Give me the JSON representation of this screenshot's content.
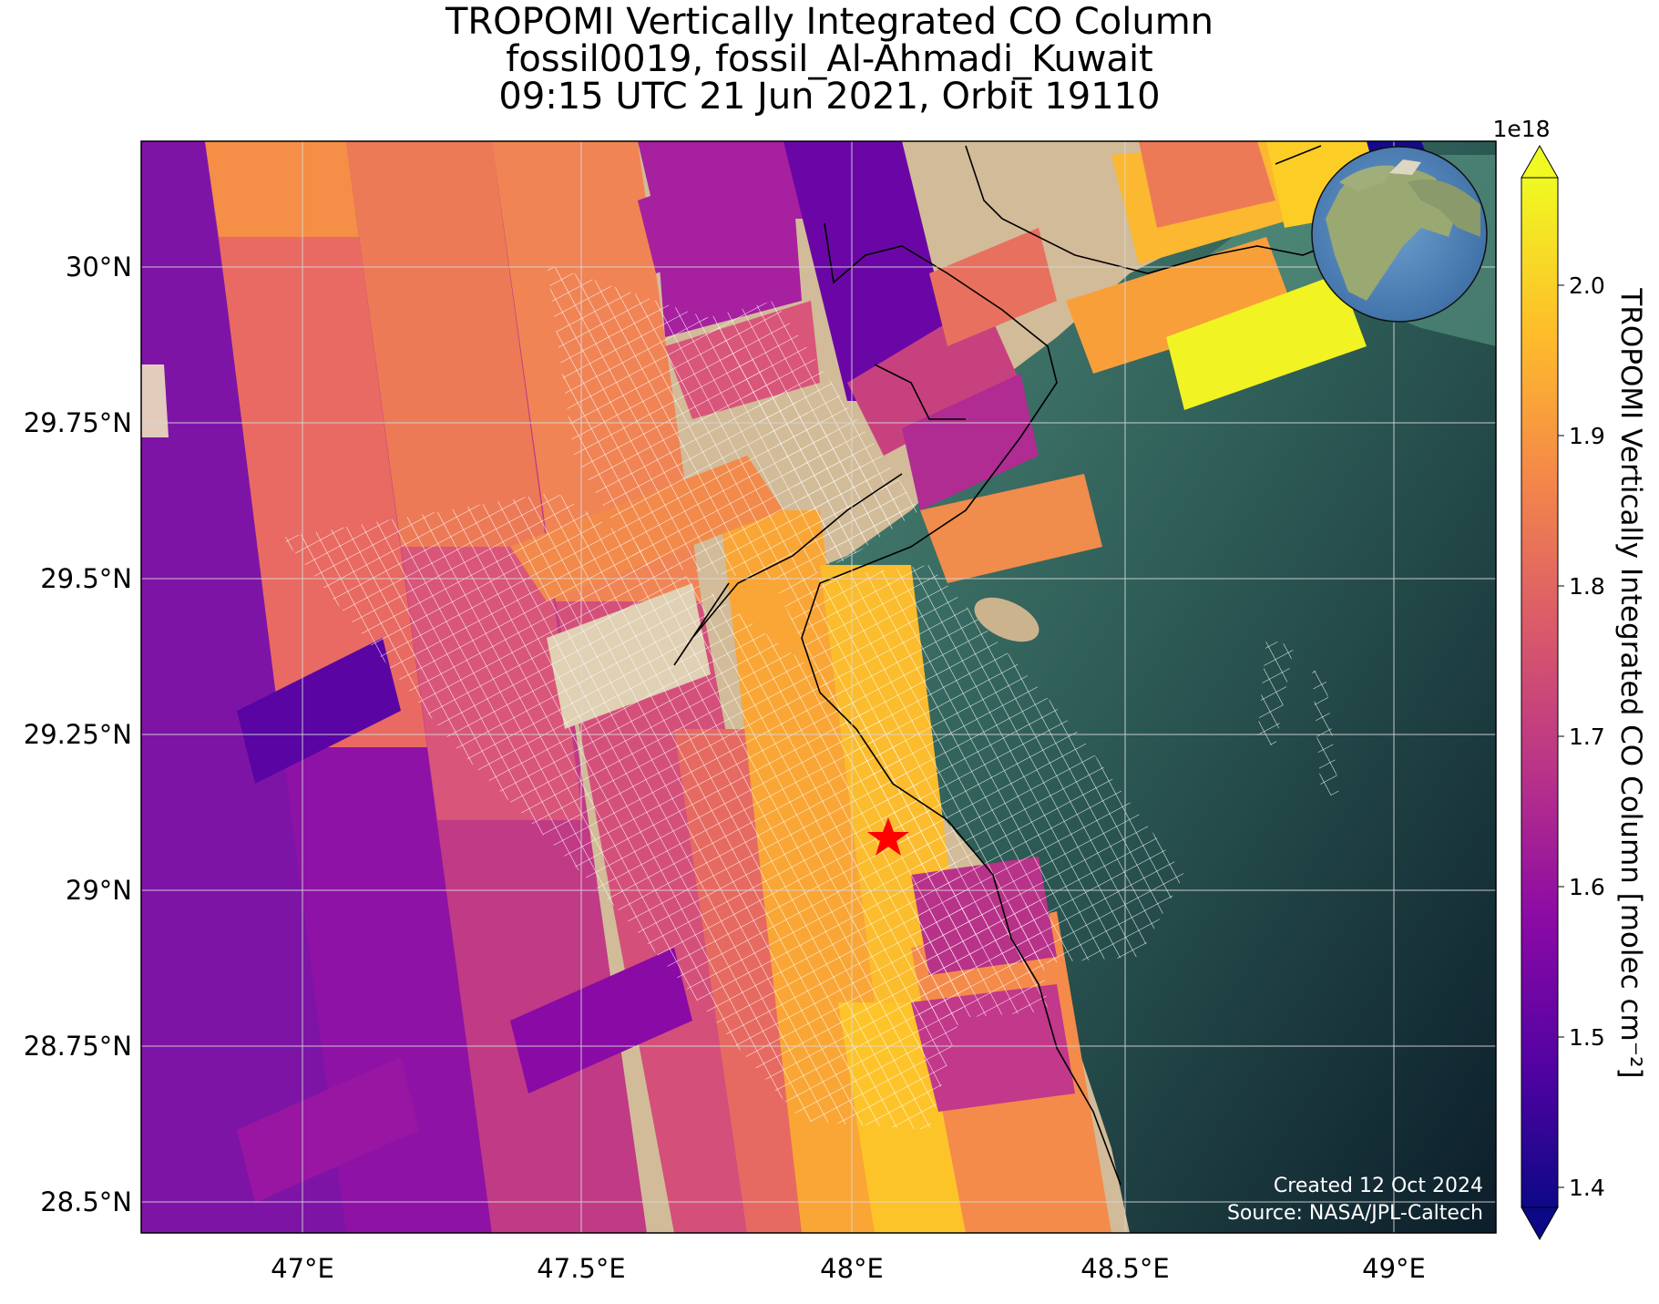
{
  "title": {
    "line1": "TROPOMI Vertically Integrated CO Column",
    "line2": "fossil0019, fossil_Al-Ahmadi_Kuwait",
    "line3": "09:15 UTC 21 Jun 2021, Orbit 19110"
  },
  "map": {
    "lon_ticks": [
      "47°E",
      "47.5°E",
      "48°E",
      "48.5°E",
      "49°E"
    ],
    "lat_ticks": [
      "30°N",
      "29.75°N",
      "29.5°N",
      "29.25°N",
      "29°N",
      "28.75°N",
      "28.5°N"
    ],
    "source_marker": {
      "lon": 48.08,
      "lat": 29.09,
      "color": "#ff0000",
      "icon": "star-icon"
    },
    "credits": {
      "created": "Created 12 Oct 2024",
      "source": "Source: NASA/JPL-Caltech"
    },
    "grid": true,
    "inset": "globe-locator"
  },
  "colorbar": {
    "label": "TROPOMI Vertically Integrated CO Column [molec cm⁻²]",
    "exponent": "1e18",
    "ticks": [
      "1.4",
      "1.5",
      "1.6",
      "1.7",
      "1.8",
      "1.9",
      "2.0"
    ],
    "colormap": "plasma",
    "extend": "both"
  }
}
